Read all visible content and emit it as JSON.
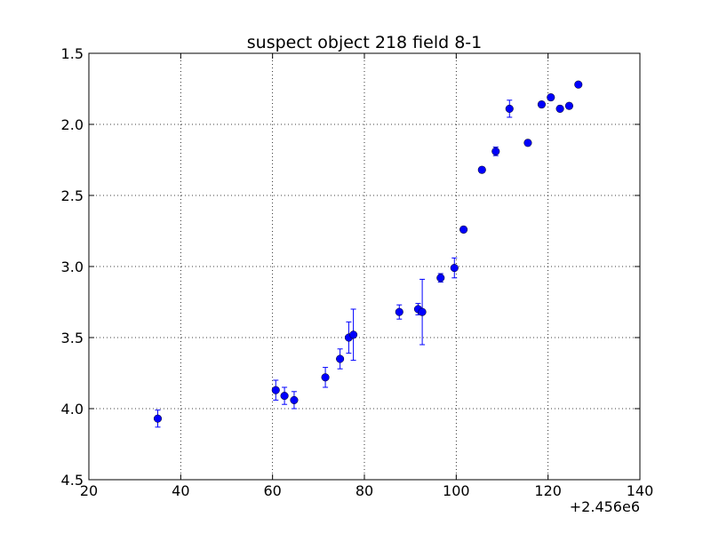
{
  "chart_data": {
    "type": "scatter",
    "title": "suspect object 218 field 8-1",
    "xlabel": "",
    "ylabel": "",
    "x_offset_label": "+2.456e6",
    "xlim": [
      20,
      140
    ],
    "ylim": [
      1.5,
      4.5
    ],
    "y_inverted": true,
    "grid": true,
    "x_ticks": [
      "20",
      "40",
      "60",
      "80",
      "100",
      "120",
      "140"
    ],
    "y_ticks": [
      "1.5",
      "2.0",
      "2.5",
      "3.0",
      "3.5",
      "4.0",
      "4.5"
    ],
    "marker_color": "#0000ff",
    "series": [
      {
        "x": [
          35.0,
          60.7,
          62.6,
          64.7,
          71.5,
          74.7,
          76.6,
          77.6,
          87.6,
          91.7,
          92.6,
          96.6,
          99.6,
          101.6,
          105.6,
          108.6,
          111.6,
          115.6,
          118.6,
          120.6,
          122.6,
          124.6,
          126.6
        ],
        "y": [
          4.07,
          3.87,
          3.91,
          3.94,
          3.78,
          3.65,
          3.5,
          3.48,
          3.32,
          3.3,
          3.32,
          3.08,
          3.01,
          2.74,
          2.32,
          2.19,
          1.89,
          2.13,
          1.86,
          1.81,
          1.89,
          1.87,
          1.72
        ],
        "yerr": [
          0.06,
          0.07,
          0.06,
          0.06,
          0.07,
          0.07,
          0.11,
          0.18,
          0.05,
          0.04,
          0.23,
          0.03,
          0.07,
          0.02,
          0.02,
          0.03,
          0.06,
          0.02,
          0.02,
          0.02,
          0.02,
          0.02,
          0.01
        ]
      }
    ]
  }
}
